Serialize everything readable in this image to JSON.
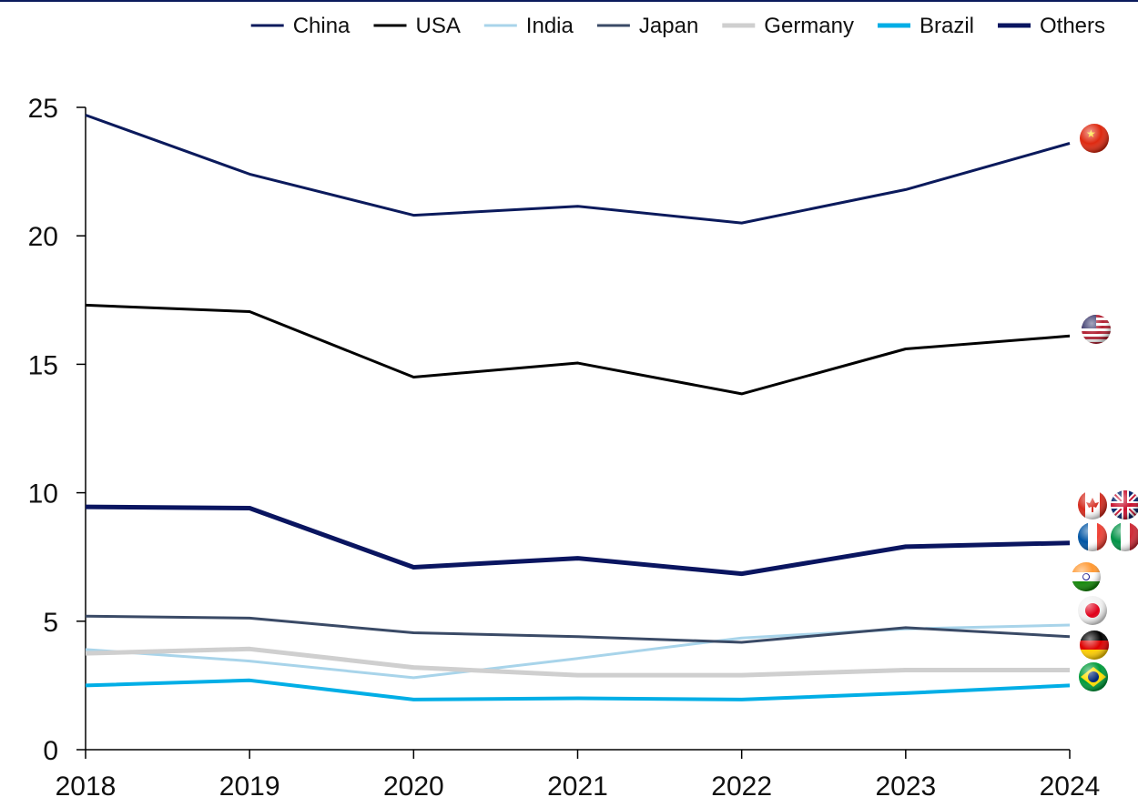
{
  "chart_data": {
    "type": "line",
    "x": [
      "2018",
      "2019",
      "2020",
      "2021",
      "2022",
      "2023",
      "2024"
    ],
    "ylim": [
      0,
      25
    ],
    "yticks": [
      "0",
      "5",
      "10",
      "15",
      "20",
      "25"
    ],
    "grid": false,
    "legend_position": "top-right",
    "series": [
      {
        "name": "China",
        "color": "#0b1a5c",
        "values": [
          24.7,
          22.4,
          20.8,
          21.15,
          20.5,
          21.8,
          23.6
        ],
        "flag": "china-flag-icon"
      },
      {
        "name": "USA",
        "color": "#000000",
        "values": [
          17.3,
          17.05,
          14.5,
          15.05,
          13.85,
          15.6,
          16.1
        ],
        "flag": "usa-flag-icon"
      },
      {
        "name": "India",
        "color": "#a8d4ea",
        "values": [
          3.9,
          3.45,
          2.8,
          3.55,
          4.35,
          4.7,
          4.85
        ],
        "flag": "india-flag-icon"
      },
      {
        "name": "Japan",
        "color": "#3a4a66",
        "values": [
          5.2,
          5.12,
          4.55,
          4.4,
          4.18,
          4.75,
          4.4
        ],
        "flag": "japan-flag-icon"
      },
      {
        "name": "Germany",
        "color": "#cfcfcf",
        "values": [
          3.75,
          3.92,
          3.2,
          2.9,
          2.9,
          3.1,
          3.1
        ],
        "flag": "germany-flag-icon"
      },
      {
        "name": "Brazil",
        "color": "#00aee6",
        "values": [
          2.5,
          2.7,
          1.95,
          2.0,
          1.95,
          2.2,
          2.5
        ],
        "flag": "brazil-flag-icon"
      },
      {
        "name": "Others",
        "color": "#0a1560",
        "values": [
          9.45,
          9.4,
          7.1,
          7.45,
          6.85,
          7.9,
          8.05
        ],
        "flag": "others-flags"
      }
    ]
  }
}
